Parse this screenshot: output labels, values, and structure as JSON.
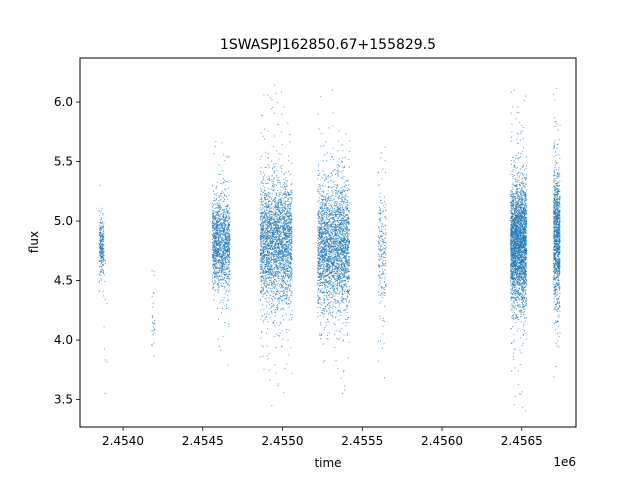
{
  "chart_data": {
    "type": "scatter",
    "title": "1SWASPJ162850.67+155829.5",
    "xlabel": "time",
    "ylabel": "flux",
    "x_offset_label": "1e6",
    "x_tick_labels": [
      "2.4540",
      "2.4545",
      "2.4550",
      "2.4555",
      "2.4560",
      "2.4565"
    ],
    "x_ticks": [
      2454000,
      2454500,
      2455000,
      2455500,
      2456000,
      2456500
    ],
    "y_tick_labels": [
      "3.5",
      "4.0",
      "4.5",
      "5.0",
      "5.5",
      "6.0"
    ],
    "y_ticks": [
      3.5,
      4.0,
      4.5,
      5.0,
      5.5,
      6.0
    ],
    "xlim": [
      2453730,
      2456840
    ],
    "ylim": [
      3.27,
      6.37
    ],
    "grid": false,
    "marker_color": "#1f77b4",
    "series": [
      {
        "clusters": [
          {
            "x_min": 2453850,
            "x_max": 2453880,
            "count": 260,
            "center": 4.8,
            "sd": 0.11,
            "y_min": 4.35,
            "y_max": 5.3
          },
          {
            "x_min": 2453880,
            "x_max": 2453900,
            "count": 18,
            "center": 4.2,
            "sd": 0.4,
            "y_min": 3.45,
            "y_max": 5.0
          },
          {
            "x_min": 2454180,
            "x_max": 2454200,
            "count": 30,
            "center": 4.15,
            "sd": 0.18,
            "y_min": 3.8,
            "y_max": 4.6
          },
          {
            "x_min": 2454560,
            "x_max": 2454670,
            "count": 1300,
            "center": 4.82,
            "sd": 0.19,
            "y_min": 3.6,
            "y_max": 5.7
          },
          {
            "x_min": 2454860,
            "x_max": 2455060,
            "count": 2600,
            "center": 4.82,
            "sd": 0.26,
            "y_min": 3.42,
            "y_max": 6.22
          },
          {
            "x_min": 2455220,
            "x_max": 2455420,
            "count": 2600,
            "center": 4.8,
            "sd": 0.26,
            "y_min": 3.42,
            "y_max": 6.15
          },
          {
            "x_min": 2455600,
            "x_max": 2455650,
            "count": 220,
            "center": 4.78,
            "sd": 0.3,
            "y_min": 3.4,
            "y_max": 5.82
          },
          {
            "x_min": 2456430,
            "x_max": 2456530,
            "count": 2800,
            "center": 4.8,
            "sd": 0.26,
            "y_min": 3.4,
            "y_max": 6.1
          },
          {
            "x_min": 2456700,
            "x_max": 2456740,
            "count": 1100,
            "center": 4.85,
            "sd": 0.3,
            "y_min": 3.65,
            "y_max": 6.2
          }
        ]
      }
    ]
  }
}
